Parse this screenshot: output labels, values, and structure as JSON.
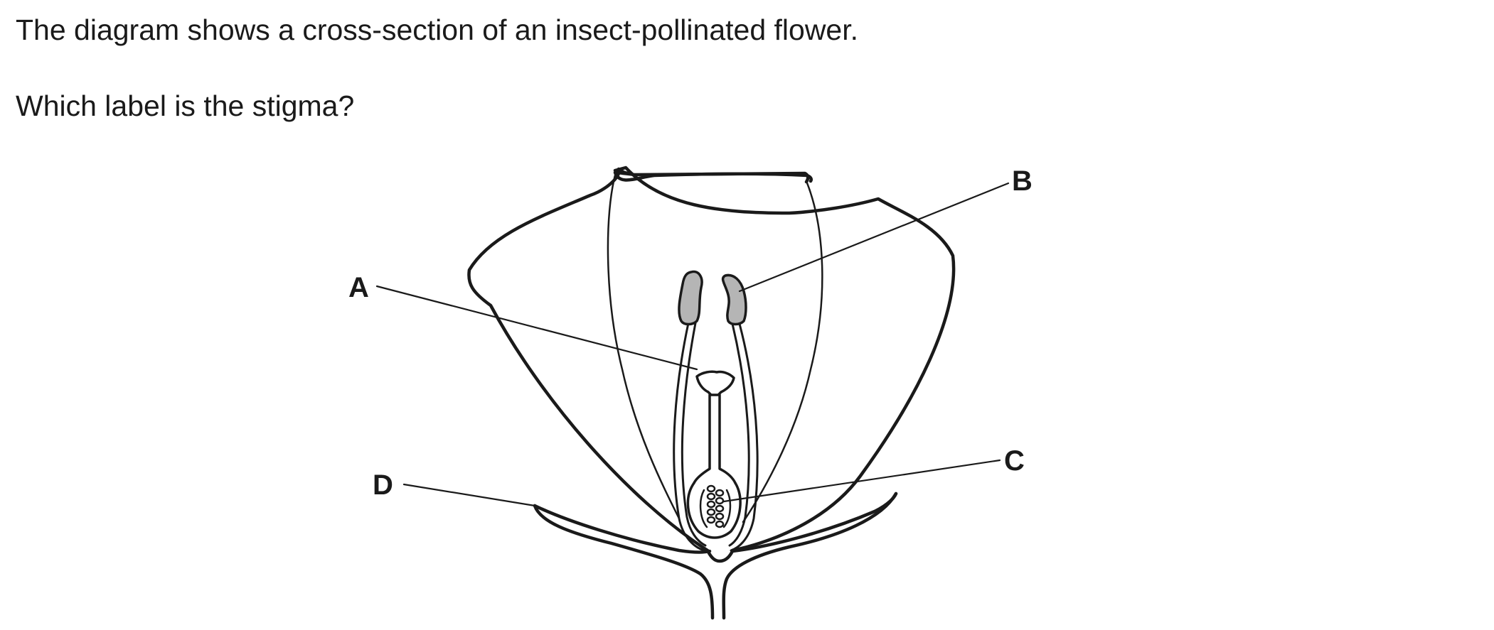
{
  "question": {
    "intro": "The diagram shows a cross-section of an insect-pollinated flower.",
    "prompt": "Which label is the stigma?"
  },
  "diagram": {
    "labels": {
      "a": "A",
      "b": "B",
      "c": "C",
      "d": "D"
    },
    "colors": {
      "line": "#1a1a1a",
      "anther_fill": "#b5b5b5",
      "background": "#ffffff"
    }
  }
}
